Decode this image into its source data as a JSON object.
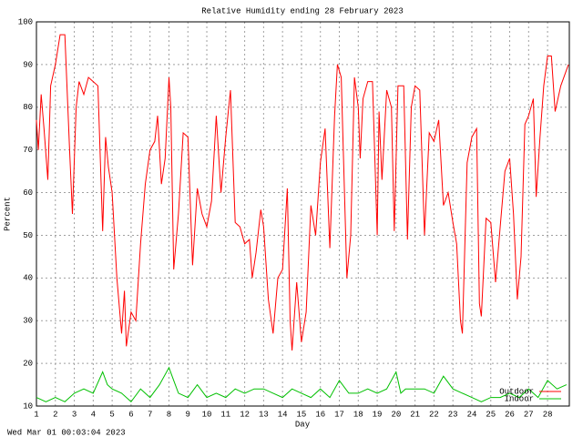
{
  "chart_data": {
    "type": "line",
    "title": "Relative Humidity ending 28 February 2023",
    "x_label": "Day",
    "y_label": "Percent",
    "footer": "Wed Mar 01 00:03:04 2023",
    "xlim": [
      1,
      29.15
    ],
    "ylim": [
      10,
      100
    ],
    "xticks": [
      1,
      2,
      3,
      4,
      5,
      6,
      7,
      8,
      9,
      10,
      11,
      12,
      13,
      14,
      15,
      16,
      17,
      18,
      19,
      20,
      21,
      22,
      23,
      24,
      25,
      26,
      27,
      28
    ],
    "yticks": [
      10,
      20,
      30,
      40,
      50,
      60,
      70,
      80,
      90,
      100
    ],
    "grid": true,
    "legend": "lower right",
    "series": [
      {
        "name": "Outdoor",
        "color": "#ff0000",
        "x": [
          1.0,
          1.1,
          1.25,
          1.4,
          1.6,
          1.75,
          2.0,
          2.25,
          2.5,
          2.75,
          2.9,
          3.1,
          3.25,
          3.5,
          3.75,
          4.0,
          4.25,
          4.5,
          4.65,
          4.8,
          5.0,
          5.25,
          5.5,
          5.65,
          5.75,
          6.0,
          6.25,
          6.5,
          6.75,
          7.0,
          7.25,
          7.4,
          7.6,
          7.8,
          8.0,
          8.1,
          8.25,
          8.5,
          8.75,
          9.0,
          9.25,
          9.5,
          9.75,
          10.0,
          10.25,
          10.5,
          10.75,
          11.0,
          11.25,
          11.5,
          11.75,
          12.0,
          12.25,
          12.4,
          12.6,
          12.85,
          13.0,
          13.25,
          13.5,
          13.75,
          14.0,
          14.25,
          14.4,
          14.5,
          14.75,
          15.0,
          15.25,
          15.5,
          15.75,
          16.0,
          16.25,
          16.5,
          16.75,
          16.9,
          17.1,
          17.4,
          17.6,
          17.8,
          18.0,
          18.1,
          18.25,
          18.5,
          18.75,
          19.0,
          19.1,
          19.25,
          19.5,
          19.75,
          19.9,
          20.1,
          20.4,
          20.6,
          20.8,
          21.0,
          21.25,
          21.5,
          21.75,
          22.0,
          22.25,
          22.5,
          22.75,
          23.0,
          23.2,
          23.4,
          23.5,
          23.75,
          24.0,
          24.25,
          24.4,
          24.5,
          24.75,
          25.0,
          25.25,
          25.5,
          25.75,
          26.0,
          26.2,
          26.4,
          26.6,
          26.8,
          27.0,
          27.25,
          27.4,
          27.6,
          27.8,
          28.0,
          28.2,
          28.4,
          28.7,
          29.1
        ],
        "values": [
          77,
          70,
          83,
          75,
          63,
          85,
          90,
          97,
          97,
          70,
          55,
          80,
          86,
          83,
          87,
          86,
          85,
          51,
          73,
          66,
          60,
          40,
          27,
          37,
          24,
          32,
          30,
          48,
          62,
          70,
          72,
          78,
          62,
          68,
          87,
          80,
          42,
          55,
          74,
          73,
          43,
          61,
          55,
          52,
          58,
          78,
          60,
          73,
          84,
          53,
          52,
          48,
          49,
          40,
          46,
          56,
          52,
          35,
          27,
          40,
          42,
          61,
          30,
          23,
          39,
          25,
          32,
          57,
          50,
          67,
          75,
          47,
          78,
          90,
          87,
          40,
          50,
          87,
          80,
          68,
          82,
          86,
          86,
          50,
          79,
          63,
          84,
          80,
          51,
          85,
          85,
          49,
          80,
          85,
          84,
          50,
          74,
          72,
          77,
          57,
          60,
          53,
          48,
          30,
          27,
          67,
          73,
          75,
          34,
          31,
          54,
          53,
          39,
          52,
          65,
          68,
          55,
          35,
          45,
          76,
          78,
          82,
          59,
          73,
          85,
          92,
          92,
          79,
          85,
          90
        ]
      },
      {
        "name": "Indoor",
        "color": "#00c000",
        "x": [
          1,
          1.5,
          2,
          2.5,
          3,
          3.5,
          4,
          4.5,
          4.75,
          5,
          5.5,
          6,
          6.5,
          7,
          7.5,
          8,
          8.25,
          8.5,
          9,
          9.5,
          10,
          10.5,
          11,
          11.5,
          12,
          12.5,
          13,
          13.5,
          14,
          14.5,
          15,
          15.5,
          16,
          16.5,
          17,
          17.5,
          18,
          18.5,
          19,
          19.5,
          20,
          20.25,
          20.5,
          21,
          21.5,
          22,
          22.5,
          23,
          23.5,
          24,
          24.5,
          25,
          25.5,
          26,
          26.5,
          27,
          27.5,
          28,
          28.5,
          29
        ],
        "values": [
          12,
          11,
          12,
          11,
          13,
          14,
          13,
          18,
          15,
          14,
          13,
          11,
          14,
          12,
          15,
          19,
          16,
          13,
          12,
          15,
          12,
          13,
          12,
          14,
          13,
          14,
          14,
          13,
          12,
          14,
          13,
          12,
          14,
          12,
          16,
          13,
          13,
          14,
          13,
          14,
          18,
          13,
          14,
          14,
          14,
          13,
          17,
          14,
          13,
          12,
          11,
          12,
          12,
          13,
          12,
          14,
          12,
          16,
          14,
          15
        ]
      }
    ]
  }
}
